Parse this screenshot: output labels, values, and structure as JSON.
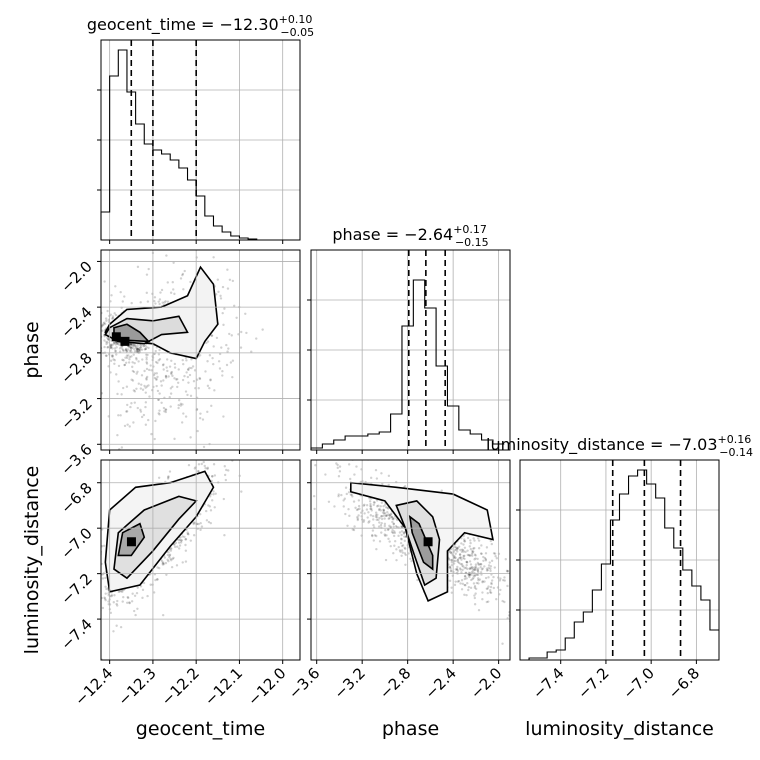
{
  "chart_data": {
    "type": "corner",
    "parameters": [
      "geocent_time",
      "phase",
      "luminosity_distance"
    ],
    "grid": true,
    "panels": [
      {
        "type": "histogram",
        "position": "row 1, col 1",
        "parameter": "geocent_time",
        "title": {
          "prefix": "geocent_time = −12.30",
          "upper": "+0.10",
          "lower": "−0.05"
        },
        "xlim": [
          -12.42,
          -11.96
        ],
        "ylim": [
          0,
          1.0
        ],
        "bin_edges": [
          -12.42,
          -12.4,
          -12.38,
          -12.36,
          -12.34,
          -12.32,
          -12.3,
          -12.28,
          -12.26,
          -12.24,
          -12.22,
          -12.2,
          -12.18,
          -12.16,
          -12.14,
          -12.12,
          -12.1,
          -12.08,
          -12.06,
          -12.04,
          -12.02,
          -12.0,
          -11.98,
          -11.96
        ],
        "counts": [
          0.14,
          0.82,
          0.95,
          0.74,
          0.58,
          0.48,
          0.45,
          0.43,
          0.4,
          0.36,
          0.3,
          0.22,
          0.12,
          0.07,
          0.04,
          0.02,
          0.01,
          0.005,
          0.0,
          0.0,
          0.0,
          0.0,
          0.0
        ],
        "quantile_lines": [
          -12.35,
          -12.3,
          -12.2
        ]
      },
      {
        "type": "histogram",
        "position": "row 2, col 2",
        "parameter": "phase",
        "title": {
          "prefix": "phase = −2.64",
          "upper": "+0.17",
          "lower": "−0.15"
        },
        "xlim": [
          -3.65,
          -1.9
        ],
        "ylim": [
          0,
          1.0
        ],
        "bin_edges": [
          -3.65,
          -3.55,
          -3.45,
          -3.35,
          -3.25,
          -3.15,
          -3.05,
          -2.95,
          -2.85,
          -2.75,
          -2.65,
          -2.55,
          -2.45,
          -2.35,
          -2.25,
          -2.15,
          -2.05,
          -1.95
        ],
        "counts": [
          0.01,
          0.03,
          0.05,
          0.07,
          0.07,
          0.08,
          0.09,
          0.18,
          0.62,
          0.85,
          0.71,
          0.42,
          0.22,
          0.1,
          0.08,
          0.05,
          0.03
        ],
        "quantile_lines": [
          -2.79,
          -2.64,
          -2.47
        ]
      },
      {
        "type": "histogram",
        "position": "row 3, col 3",
        "parameter": "luminosity_distance",
        "title": {
          "prefix": "luminosity_distance = −7.03",
          "upper": "+0.16",
          "lower": "−0.14"
        },
        "xlim": [
          -7.58,
          -6.7
        ],
        "ylim": [
          0,
          1.0
        ],
        "bin_edges": [
          -7.58,
          -7.54,
          -7.5,
          -7.46,
          -7.42,
          -7.38,
          -7.34,
          -7.3,
          -7.26,
          -7.22,
          -7.18,
          -7.14,
          -7.1,
          -7.06,
          -7.02,
          -6.98,
          -6.94,
          -6.9,
          -6.86,
          -6.82,
          -6.78,
          -6.74,
          -6.7
        ],
        "counts": [
          0.0,
          0.01,
          0.01,
          0.04,
          0.05,
          0.11,
          0.19,
          0.24,
          0.35,
          0.48,
          0.7,
          0.83,
          0.92,
          0.95,
          0.88,
          0.81,
          0.66,
          0.56,
          0.45,
          0.37,
          0.3,
          0.15
        ],
        "quantile_lines": [
          -7.17,
          -7.03,
          -6.87
        ]
      },
      {
        "type": "scatter-contour",
        "position": "row 2, col 1",
        "x": "geocent_time",
        "y": "phase",
        "xlim": [
          -12.42,
          -11.96
        ],
        "ylim": [
          -3.65,
          -1.9
        ],
        "peak": [
          -12.36,
          -2.65
        ]
      },
      {
        "type": "scatter-contour",
        "position": "row 3, col 1",
        "x": "geocent_time",
        "y": "luminosity_distance",
        "xlim": [
          -12.42,
          -11.96
        ],
        "ylim": [
          -7.58,
          -6.7
        ],
        "peak": [
          -12.35,
          -7.05
        ]
      },
      {
        "type": "scatter-contour",
        "position": "row 3, col 2",
        "x": "phase",
        "y": "luminosity_distance",
        "xlim": [
          -3.65,
          -1.9
        ],
        "ylim": [
          -7.58,
          -6.7
        ],
        "peak": [
          -2.62,
          -7.05
        ]
      }
    ],
    "axis_labels": {
      "bottom": [
        "geocent_time",
        "phase",
        "luminosity_distance"
      ],
      "left": [
        "phase",
        "luminosity_distance"
      ]
    },
    "ticks": {
      "geocent_time": [
        {
          "value": -12.4,
          "label": "−12.4"
        },
        {
          "value": -12.3,
          "label": "−12.3"
        },
        {
          "value": -12.2,
          "label": "−12.2"
        },
        {
          "value": -12.1,
          "label": "−12.1"
        },
        {
          "value": -12.0,
          "label": "−12.0"
        }
      ],
      "phase": [
        {
          "value": -3.6,
          "label": "−3.6"
        },
        {
          "value": -3.2,
          "label": "−3.2"
        },
        {
          "value": -2.8,
          "label": "−2.8"
        },
        {
          "value": -2.4,
          "label": "−2.4"
        },
        {
          "value": -2.0,
          "label": "−2.0"
        }
      ],
      "luminosity_distance": [
        {
          "value": -7.4,
          "label": "−7.4"
        },
        {
          "value": -7.2,
          "label": "−7.2"
        },
        {
          "value": -7.0,
          "label": "−7.0"
        },
        {
          "value": -6.8,
          "label": "−6.8"
        }
      ]
    }
  }
}
